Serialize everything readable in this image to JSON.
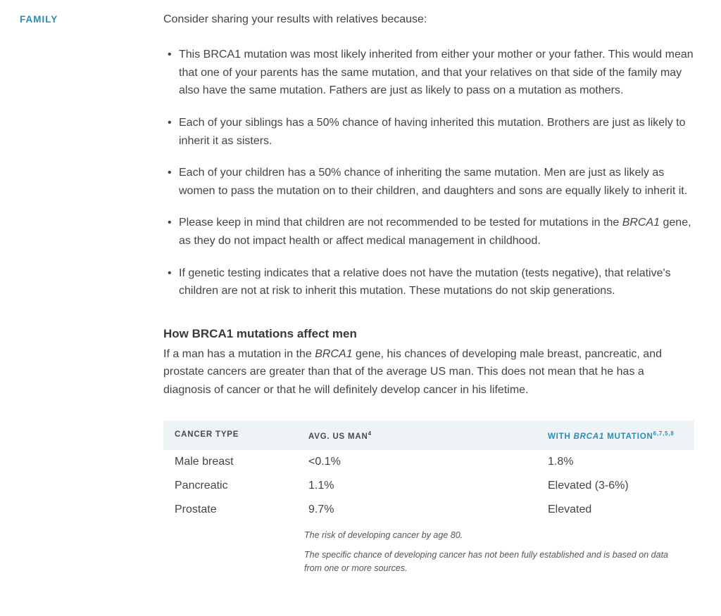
{
  "sidebar": {
    "label": "FAMILY"
  },
  "content": {
    "intro": "Consider sharing your results with relatives because:",
    "bullets": [
      "This BRCA1 mutation was most likely inherited from either your mother or your father. This would mean that one of your parents has the same mutation, and that your relatives on that side of the family may also have the same mutation. Fathers are just as likely to pass on a mutation as mothers.",
      "Each of your siblings has a 50% chance of having inherited this mutation. Brothers are just as likely to inherit it as sisters.",
      "Each of your children has a 50% chance of inheriting the same mutation. Men are just as likely as women to pass the mutation on to their children, and daughters and sons are equally likely to inherit it.",
      "",
      "If genetic testing indicates that a relative does not have the mutation (tests negative), that relative's children are not at risk to inherit this mutation. These mutations do not skip generations."
    ],
    "bullet3_pre": "Please keep in mind that children are not recommended to be tested for mutations in the ",
    "bullet3_italic": "BRCA1",
    "bullet3_post": " gene, as they do not impact health or affect medical management in childhood.",
    "subheading": "How BRCA1 mutations affect men",
    "paragraph_pre": "If a man has a mutation in the ",
    "paragraph_italic": "BRCA1",
    "paragraph_post": " gene, his chances of developing male breast, pancreatic, and prostate cancers are greater than that of the average US man. This does not mean that he has a diagnosis of cancer or that he will definitely develop cancer in his lifetime."
  },
  "table": {
    "columns": {
      "c1": "CANCER TYPE",
      "c2": "AVG. US MAN",
      "c2_sup": "4",
      "c3_pre": "WITH ",
      "c3_italic": "BRCA1",
      "c3_post": " MUTATION",
      "c3_sup": "6,7,5,8"
    },
    "rows": [
      {
        "c1": "Male breast",
        "c2": "<0.1%",
        "c3": "1.8%"
      },
      {
        "c1": "Pancreatic",
        "c2": "1.1%",
        "c3": "Elevated (3-6%)"
      },
      {
        "c1": "Prostate",
        "c2": "9.7%",
        "c3": "Elevated"
      }
    ],
    "footnotes": [
      "The risk of developing cancer by age 80.",
      "The specific chance of developing cancer has not been fully established and is based on data from one or more sources."
    ]
  },
  "colors": {
    "accent": "#2b8cb5",
    "text": "#444444",
    "table_header_bg": "#eef3f5",
    "background": "#ffffff"
  }
}
